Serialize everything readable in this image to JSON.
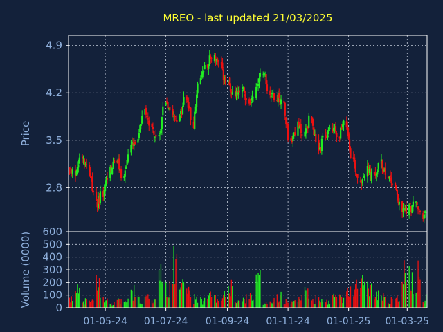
{
  "title": "MREO - last updated 21/03/2025",
  "colors": {
    "background": "#13213a",
    "title": "#ffff33",
    "axis_text": "#8fb0dc",
    "plot_border": "#ffffff",
    "grid": "#c8d0dc",
    "candle_up": "#22ee22",
    "candle_down": "#ee1111"
  },
  "chart_data": [
    {
      "type": "candlestick",
      "title": "MREO - last updated 21/03/2025",
      "ylabel": "Price",
      "ylim": [
        2.15,
        5.05
      ],
      "yticks": [
        2.8,
        3.5,
        4.2,
        4.9
      ],
      "ytick_labels": [
        "2.8",
        "3.5",
        "4.2",
        "4.9"
      ],
      "xticks": [
        "2024-05-01",
        "2024-07-01",
        "2024-09-01",
        "2024-11-01",
        "2025-01-01",
        "2025-03-01"
      ],
      "xtick_labels": [
        "01-05-24",
        "01-07-24",
        "01-09-24",
        "01-11-24",
        "01-01-25",
        "01-03-25"
      ],
      "x_range": [
        "2024-03-25",
        "2025-03-21"
      ],
      "grid": true,
      "series": [
        {
          "x": [
            "2024-03-25",
            "2024-04-01",
            "2024-04-08",
            "2024-04-15",
            "2024-04-22",
            "2024-04-29",
            "2024-05-06",
            "2024-05-13",
            "2024-05-20",
            "2024-05-27",
            "2024-06-03",
            "2024-06-10",
            "2024-06-17",
            "2024-06-24",
            "2024-07-01",
            "2024-07-08",
            "2024-07-15",
            "2024-07-22",
            "2024-07-29",
            "2024-08-05",
            "2024-08-12",
            "2024-08-19",
            "2024-08-26",
            "2024-09-02",
            "2024-09-09",
            "2024-09-16",
            "2024-09-23",
            "2024-09-30",
            "2024-10-07",
            "2024-10-14",
            "2024-10-21",
            "2024-10-28",
            "2024-11-04",
            "2024-11-11",
            "2024-11-18",
            "2024-11-25",
            "2024-12-02",
            "2024-12-09",
            "2024-12-16",
            "2024-12-23",
            "2024-12-30",
            "2025-01-06",
            "2025-01-13",
            "2025-01-20",
            "2025-01-27",
            "2025-02-03",
            "2025-02-10",
            "2025-02-17",
            "2025-02-24",
            "2025-03-03",
            "2025-03-10",
            "2025-03-17"
          ],
          "close": [
            3.05,
            3.0,
            3.3,
            3.1,
            2.55,
            2.7,
            3.05,
            3.2,
            2.95,
            3.4,
            3.45,
            4.0,
            3.7,
            3.5,
            4.1,
            3.95,
            3.8,
            4.15,
            3.75,
            4.4,
            4.65,
            4.75,
            4.55,
            4.3,
            4.1,
            4.3,
            4.0,
            4.25,
            4.55,
            4.2,
            4.15,
            4.05,
            3.45,
            3.7,
            3.6,
            3.85,
            3.3,
            3.55,
            3.7,
            3.6,
            3.75,
            3.2,
            2.9,
            3.05,
            2.95,
            3.15,
            3.0,
            2.85,
            2.45,
            2.5,
            2.55,
            2.4
          ]
        }
      ]
    },
    {
      "type": "bar",
      "ylabel": "Volume (0000)",
      "ylim": [
        0,
        600
      ],
      "yticks": [
        0,
        100,
        200,
        300,
        400,
        500,
        600
      ],
      "ytick_labels": [
        "0",
        "100",
        "200",
        "300",
        "400",
        "500",
        "600"
      ],
      "grid": true,
      "series": [
        {
          "values": [
            80,
            180,
            70,
            60,
            220,
            90,
            40,
            70,
            60,
            150,
            80,
            100,
            60,
            280,
            180,
            520,
            260,
            140,
            90,
            70,
            110,
            90,
            150,
            180,
            70,
            90,
            100,
            260,
            60,
            80,
            110,
            90,
            70,
            90,
            160,
            80,
            70,
            60,
            110,
            90,
            150,
            200,
            230,
            180,
            120,
            100,
            80,
            90,
            360,
            280,
            330,
            90
          ]
        }
      ]
    }
  ]
}
